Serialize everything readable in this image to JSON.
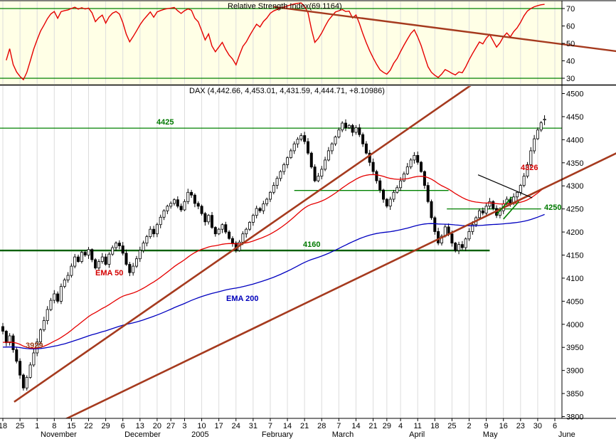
{
  "colors": {
    "rsi_bg": "#FFFFE6",
    "grid": "#DCDCDC",
    "rsi_red": "#E50000",
    "level_green": "#008000",
    "level_dark_green": "#006000",
    "brown": "#A53A1E",
    "ema50": "#E50000",
    "ema200": "#0000C0",
    "candle_up": "#FFFFFF",
    "candle_down": "#000000",
    "border": "#000000"
  },
  "labels": {
    "level_4425": "4425",
    "level_4326": "4326",
    "level_4250": "4250",
    "level_4160": "4160",
    "level_3929": "3929",
    "ema50": "EMA 50",
    "ema200": "EMA 200"
  },
  "chart_data": [
    {
      "type": "line",
      "panel": "top",
      "title": "Relative Strength Index(69.1164)",
      "indicator": "Relative Strength Index",
      "last_value": 69.1164,
      "yticks": [
        70,
        60,
        50,
        40,
        30
      ],
      "levels": [
        70,
        30
      ],
      "ylim": [
        26.5,
        74
      ],
      "grid": "vertical-weekly",
      "trendline": {
        "from_day": 79,
        "from_value": 71,
        "to_day": 179,
        "to_value": 45.5
      }
    },
    {
      "type": "candlestick",
      "panel": "main",
      "symbol": "DAX",
      "title": "DAX (4,442.66, 4,453.01, 4,431.59, 4,444.71, +8.10986)",
      "last_ohlc": {
        "open": 4442.66,
        "high": 4453.01,
        "low": 4431.59,
        "close": 4444.71,
        "change": 8.10986
      },
      "ylim": [
        3796,
        4516
      ],
      "yticks": [
        4500,
        4450,
        4400,
        4350,
        4300,
        4250,
        4200,
        4150,
        4100,
        4050,
        4000,
        3950,
        3900,
        3850,
        3800
      ],
      "first_open": 3995,
      "closes": [
        3985,
        3960,
        3975,
        3945,
        3920,
        3890,
        3862,
        3885,
        3912,
        3938,
        3962,
        3988,
        4008,
        4032,
        4052,
        4066,
        4050,
        4082,
        4096,
        4106,
        4126,
        4146,
        4136,
        4156,
        4150,
        4162,
        4140,
        4122,
        4136,
        4146,
        4130,
        4152,
        4166,
        4176,
        4170,
        4154,
        4130,
        4112,
        4126,
        4142,
        4160,
        4176,
        4190,
        4206,
        4196,
        4216,
        4232,
        4246,
        4256,
        4262,
        4270,
        4256,
        4248,
        4266,
        4286,
        4280,
        4262,
        4256,
        4240,
        4222,
        4236,
        4210,
        4196,
        4206,
        4216,
        4200,
        4186,
        4176,
        4160,
        4178,
        4196,
        4206,
        4221,
        4236,
        4251,
        4246,
        4261,
        4271,
        4286,
        4301,
        4316,
        4331,
        4346,
        4361,
        4376,
        4391,
        4401,
        4409,
        4396,
        4371,
        4341,
        4311,
        4321,
        4336,
        4356,
        4376,
        4391,
        4406,
        4421,
        4436,
        4426,
        4431,
        4416,
        4426,
        4411,
        4391,
        4371,
        4351,
        4331,
        4311,
        4291,
        4271,
        4256,
        4271,
        4286,
        4296,
        4311,
        4326,
        4341,
        4356,
        4366,
        4351,
        4331,
        4301,
        4266,
        4231,
        4201,
        4176,
        4191,
        4211,
        4196,
        4176,
        4160,
        4173,
        4166,
        4185,
        4201,
        4216,
        4231,
        4246,
        4241,
        4256,
        4266,
        4251,
        4236,
        4246,
        4261,
        4271,
        4263,
        4276,
        4286,
        4301,
        4321,
        4346,
        4376,
        4402,
        4421,
        4436.6,
        4444.71
      ],
      "overlays": [
        {
          "name": "EMA 50",
          "color_key": "ema50"
        },
        {
          "name": "EMA 200",
          "color_key": "ema200"
        }
      ],
      "support_resistance": [
        {
          "value": 4425,
          "label": "4425",
          "from_day": -1,
          "to_day": 163,
          "style": "thin"
        },
        {
          "value": 4290,
          "label": "",
          "from_day": 85,
          "to_day": 130,
          "style": "thin"
        },
        {
          "value": 4250,
          "label": "4250",
          "from_day": 129.5,
          "to_day": 157,
          "style": "thin"
        },
        {
          "value": 4160,
          "label": "4160",
          "from_day": -1,
          "to_day": 142,
          "style": "thick"
        }
      ],
      "trendlines": [
        {
          "from_day": 3.3,
          "from_price": 3832,
          "to_day": 137.1,
          "to_price": 4521,
          "color_key": "brown"
        },
        {
          "from_day": 6.4,
          "from_price": 3752,
          "to_day": 179,
          "to_price": 4371,
          "color_key": "brown"
        },
        {
          "from_day": 138.6,
          "from_price": 4324,
          "to_day": 154.4,
          "to_price": 4274,
          "color_key": "black"
        }
      ],
      "breakout_marks": [
        {
          "from_day": 144,
          "from_price": 4238,
          "to_day": 148.5,
          "to_price": 4276
        },
        {
          "from_day": 146,
          "from_price": 4228,
          "to_day": 150.5,
          "to_price": 4266
        }
      ],
      "xticks": [
        {
          "day": 0,
          "label": "18"
        },
        {
          "day": 5,
          "label": "25"
        },
        {
          "day": 10,
          "label": "1"
        },
        {
          "day": 15,
          "label": "8"
        },
        {
          "day": 20,
          "label": "15"
        },
        {
          "day": 25,
          "label": "22"
        },
        {
          "day": 30,
          "label": "29"
        },
        {
          "day": 35,
          "label": "6"
        },
        {
          "day": 40,
          "label": "13"
        },
        {
          "day": 45,
          "label": "20"
        },
        {
          "day": 49,
          "label": "27"
        },
        {
          "day": 53,
          "label": "3"
        },
        {
          "day": 58,
          "label": "10"
        },
        {
          "day": 63,
          "label": "17"
        },
        {
          "day": 68,
          "label": "24"
        },
        {
          "day": 73,
          "label": "31"
        },
        {
          "day": 78,
          "label": "7"
        },
        {
          "day": 83,
          "label": "14"
        },
        {
          "day": 88,
          "label": "21"
        },
        {
          "day": 93,
          "label": "28"
        },
        {
          "day": 98,
          "label": "7"
        },
        {
          "day": 103,
          "label": "14"
        },
        {
          "day": 108,
          "label": "21"
        },
        {
          "day": 112,
          "label": "29"
        },
        {
          "day": 116,
          "label": "4"
        },
        {
          "day": 121,
          "label": "11"
        },
        {
          "day": 126,
          "label": "18"
        },
        {
          "day": 131,
          "label": "25"
        },
        {
          "day": 136,
          "label": "2"
        },
        {
          "day": 141,
          "label": "9"
        },
        {
          "day": 146,
          "label": "16"
        },
        {
          "day": 151,
          "label": "23"
        },
        {
          "day": 156,
          "label": "30"
        },
        {
          "day": 161,
          "label": "6"
        }
      ],
      "months": [
        {
          "day": 11,
          "label": "November"
        },
        {
          "day": 35.5,
          "label": "December"
        },
        {
          "day": 55,
          "label": "2005"
        },
        {
          "day": 75.5,
          "label": "February"
        },
        {
          "day": 96,
          "label": "March"
        },
        {
          "day": 118.5,
          "label": "April"
        },
        {
          "day": 140,
          "label": "May"
        },
        {
          "day": 162,
          "label": "June"
        }
      ]
    }
  ]
}
